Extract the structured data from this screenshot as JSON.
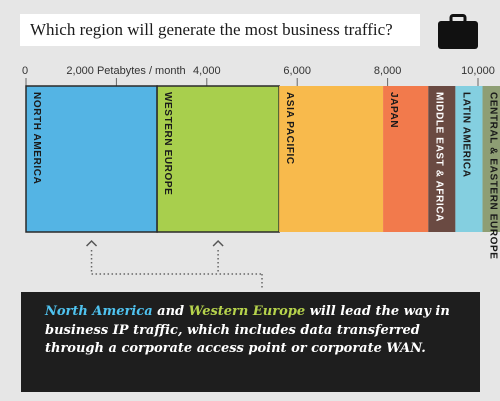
{
  "title": "Which region will generate the most business traffic?",
  "chart_data": {
    "type": "bar",
    "orientation": "stacked-horizontal",
    "unit_label": "Petabytes / month",
    "xlim": [
      0,
      10000
    ],
    "ticks": [
      {
        "value": 0,
        "label": "0"
      },
      {
        "value": 2000,
        "label": "2,000 Petabytes / month"
      },
      {
        "value": 4000,
        "label": "4,000"
      },
      {
        "value": 6000,
        "label": "6,000"
      },
      {
        "value": 8000,
        "label": "8,000"
      },
      {
        "value": 10000,
        "label": "10,000"
      }
    ],
    "categories": [
      "NORTH AMERICA",
      "WESTERN EUROPE",
      "ASIA PACIFIC",
      "JAPAN",
      "MIDDLE EAST & AFRICA",
      "LATIN AMERICA",
      "CENTRAL & EASTERN EUROPE"
    ],
    "values": [
      2900,
      2700,
      2300,
      1000,
      600,
      600,
      500
    ],
    "colors": [
      "#54b4e4",
      "#a8cf4d",
      "#f8ba4c",
      "#f27a4c",
      "#6a4a42",
      "#84cfe0",
      "#8e9e74"
    ],
    "highlighted": [
      "NORTH AMERICA",
      "WESTERN EUROPE"
    ]
  },
  "callout": {
    "region1": "North America",
    "connector": "and",
    "region2": "Western Europe",
    "rest": "will lead the way in business IP traffic, which includes data transferred through a corporate access point or corporate WAN."
  }
}
